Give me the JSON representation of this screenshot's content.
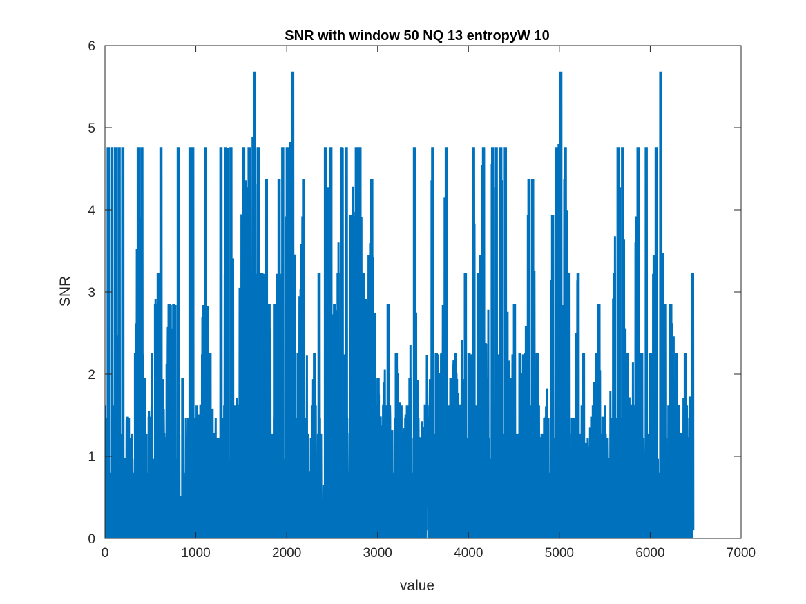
{
  "chart_data": {
    "type": "line",
    "title": "SNR with window 50  NQ 13  entropyW 10",
    "xlabel": "value",
    "ylabel": "SNR",
    "xlim": [
      0,
      7000
    ],
    "ylim": [
      0,
      6
    ],
    "x_ticks": [
      0,
      1000,
      2000,
      3000,
      4000,
      5000,
      6000,
      7000
    ],
    "y_ticks": [
      0,
      1,
      2,
      3,
      4,
      5,
      6
    ],
    "grid": false,
    "box": true,
    "line_color": "#0072BD",
    "n_points": 6460,
    "levels": [
      0,
      0.12,
      0.25,
      0.4,
      0.52,
      0.65,
      0.8,
      0.97,
      1.22,
      1.27,
      1.47,
      1.62,
      1.94,
      2.24,
      2.84,
      3.22,
      3.92,
      4.36,
      4.75,
      5.67
    ],
    "series": [
      {
        "values": [
          [
            0,
            0.0
          ],
          [
            30,
            4.75
          ],
          [
            55,
            0.3
          ],
          [
            70,
            4.75
          ],
          [
            90,
            0.5
          ],
          [
            110,
            4.75
          ],
          [
            130,
            2.24
          ],
          [
            150,
            4.75
          ],
          [
            170,
            0.5
          ],
          [
            190,
            4.75
          ],
          [
            210,
            0.97
          ],
          [
            240,
            1.47
          ],
          [
            300,
            0.3
          ],
          [
            330,
            2.24
          ],
          [
            360,
            4.75
          ],
          [
            380,
            0.6
          ],
          [
            400,
            4.75
          ],
          [
            430,
            1.94
          ],
          [
            480,
            1.47
          ],
          [
            550,
            2.84
          ],
          [
            580,
            3.22
          ],
          [
            610,
            4.75
          ],
          [
            650,
            1.22
          ],
          [
            700,
            2.84
          ],
          [
            750,
            2.84
          ],
          [
            800,
            4.75
          ],
          [
            850,
            1.94
          ],
          [
            930,
            4.75
          ],
          [
            960,
            4.75
          ],
          [
            1000,
            1.27
          ],
          [
            1050,
            1.62
          ],
          [
            1100,
            4.75
          ],
          [
            1150,
            2.24
          ],
          [
            1200,
            1.27
          ],
          [
            1270,
            4.75
          ],
          [
            1320,
            4.75
          ],
          [
            1380,
            4.75
          ],
          [
            1450,
            1.62
          ],
          [
            1520,
            4.75
          ],
          [
            1580,
            4.75
          ],
          [
            1640,
            5.67
          ],
          [
            1680,
            4.75
          ],
          [
            1720,
            3.22
          ],
          [
            1770,
            4.36
          ],
          [
            1800,
            2.84
          ],
          [
            1860,
            2.84
          ],
          [
            1910,
            4.36
          ],
          [
            1950,
            4.75
          ],
          [
            2000,
            4.75
          ],
          [
            2060,
            5.67
          ],
          [
            2120,
            2.24
          ],
          [
            2180,
            4.36
          ],
          [
            2250,
            0.8
          ],
          [
            2300,
            2.24
          ],
          [
            2350,
            3.22
          ],
          [
            2420,
            4.75
          ],
          [
            2480,
            4.75
          ],
          [
            2520,
            2.84
          ],
          [
            2560,
            3.22
          ],
          [
            2600,
            4.75
          ],
          [
            2650,
            4.75
          ],
          [
            2700,
            3.92
          ],
          [
            2760,
            4.75
          ],
          [
            2800,
            4.75
          ],
          [
            2840,
            3.22
          ],
          [
            2880,
            2.84
          ],
          [
            2930,
            4.36
          ],
          [
            3000,
            1.94
          ],
          [
            3050,
            1.27
          ],
          [
            3110,
            2.84
          ],
          [
            3150,
            1.22
          ],
          [
            3200,
            2.24
          ],
          [
            3280,
            1.22
          ],
          [
            3350,
            1.94
          ],
          [
            3400,
            4.75
          ],
          [
            3450,
            1.22
          ],
          [
            3520,
            1.62
          ],
          [
            3600,
            4.75
          ],
          [
            3640,
            2.24
          ],
          [
            3700,
            2.24
          ],
          [
            3750,
            4.75
          ],
          [
            3800,
            1.94
          ],
          [
            3850,
            2.24
          ],
          [
            3900,
            1.62
          ],
          [
            3960,
            3.22
          ],
          [
            4000,
            2.24
          ],
          [
            4050,
            4.75
          ],
          [
            4100,
            3.22
          ],
          [
            4160,
            4.75
          ],
          [
            4200,
            1.94
          ],
          [
            4260,
            4.75
          ],
          [
            4300,
            4.75
          ],
          [
            4350,
            4.75
          ],
          [
            4400,
            4.75
          ],
          [
            4450,
            1.94
          ],
          [
            4500,
            2.84
          ],
          [
            4560,
            2.24
          ],
          [
            4620,
            2.24
          ],
          [
            4660,
            4.36
          ],
          [
            4700,
            4.36
          ],
          [
            4750,
            2.24
          ],
          [
            4800,
            1.22
          ],
          [
            4850,
            1.47
          ],
          [
            4920,
            3.92
          ],
          [
            4960,
            4.75
          ],
          [
            5010,
            5.67
          ],
          [
            5060,
            4.75
          ],
          [
            5100,
            3.22
          ],
          [
            5150,
            1.22
          ],
          [
            5200,
            3.22
          ],
          [
            5260,
            2.24
          ],
          [
            5300,
            0.97
          ],
          [
            5350,
            1.47
          ],
          [
            5400,
            2.24
          ],
          [
            5430,
            2.84
          ],
          [
            5480,
            1.27
          ],
          [
            5540,
            0.97
          ],
          [
            5600,
            3.22
          ],
          [
            5640,
            4.75
          ],
          [
            5690,
            4.75
          ],
          [
            5740,
            2.24
          ],
          [
            5800,
            1.62
          ],
          [
            5860,
            4.75
          ],
          [
            5900,
            2.24
          ],
          [
            5950,
            4.75
          ],
          [
            6000,
            2.24
          ],
          [
            6060,
            4.75
          ],
          [
            6110,
            5.67
          ],
          [
            6160,
            2.84
          ],
          [
            6220,
            2.84
          ],
          [
            6280,
            2.24
          ],
          [
            6340,
            1.27
          ],
          [
            6380,
            2.24
          ],
          [
            6420,
            1.22
          ],
          [
            6460,
            3.22
          ]
        ]
      }
    ]
  }
}
